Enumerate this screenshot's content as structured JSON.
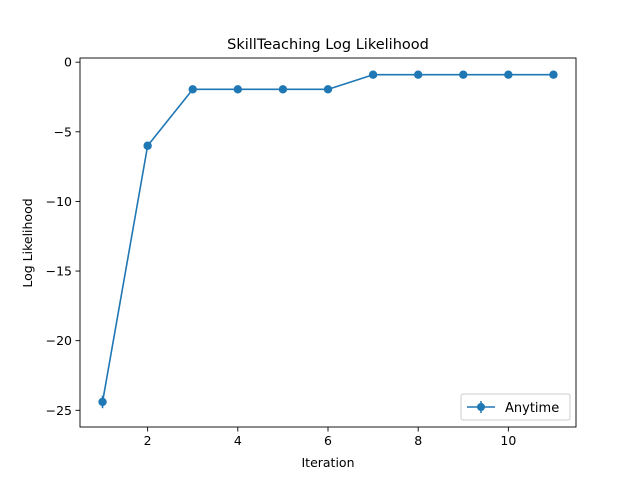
{
  "chart_data": {
    "type": "line",
    "title": "SkillTeaching Log Likelihood",
    "xlabel": "Iteration",
    "ylabel": "Log Likelihood",
    "xlim": [
      0.5,
      11.5
    ],
    "ylim": [
      -26.2,
      0.3
    ],
    "xticks": [
      2,
      4,
      6,
      8,
      10
    ],
    "yticks": [
      0,
      -5,
      -10,
      -15,
      -20,
      -25
    ],
    "xtick_labels": [
      "2",
      "4",
      "6",
      "8",
      "10"
    ],
    "ytick_labels": [
      "0",
      "−5",
      "−10",
      "−15",
      "−20",
      "−25"
    ],
    "grid": false,
    "legend_position": "lower-right",
    "series": [
      {
        "name": "Anytime",
        "color": "#1f77b4",
        "marker": "circle",
        "error_bars": true,
        "x": [
          1,
          2,
          3,
          4,
          5,
          6,
          7,
          8,
          9,
          10,
          11
        ],
        "y": [
          -24.4,
          -6.0,
          -1.95,
          -1.95,
          -1.95,
          -1.95,
          -0.9,
          -0.9,
          -0.9,
          -0.9,
          -0.9
        ],
        "yerr": [
          0.45,
          0.05,
          0.05,
          0.05,
          0.05,
          0.05,
          0.05,
          0.05,
          0.05,
          0.05,
          0.05
        ]
      }
    ]
  }
}
